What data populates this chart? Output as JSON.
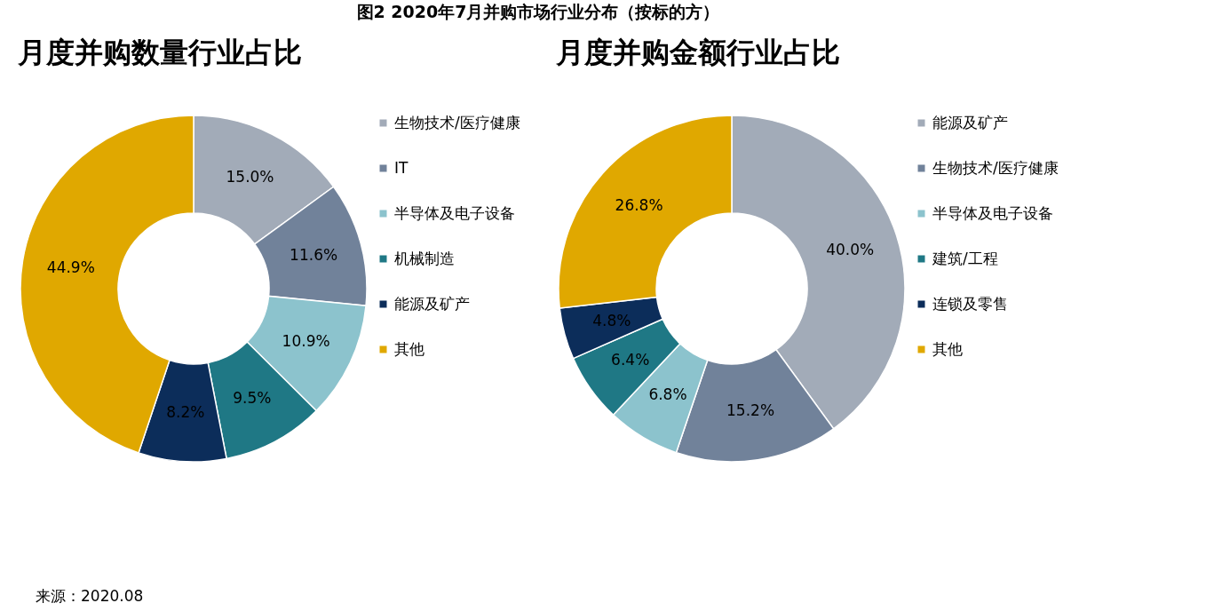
{
  "chart_data": [
    {
      "type": "donut",
      "title": "图2 2020年7月并购市场行业分布（按标的方）",
      "subtitle": "月度并购数量行业占比",
      "categories": [
        "生物技术/医疗健康",
        "IT",
        "半导体及电子设备",
        "机械制造",
        "能源及矿产",
        "其他"
      ],
      "values": [
        15.0,
        11.6,
        10.9,
        9.5,
        8.2,
        44.9
      ],
      "colors": [
        "#a2abb8",
        "#71829a",
        "#8cc3cd",
        "#1f7885",
        "#0c2d5a",
        "#e0a800"
      ],
      "value_labels": [
        "15.0%",
        "11.6%",
        "10.9%",
        "9.5%",
        "8.2%",
        "44.9%"
      ],
      "legend": "right",
      "annotations": [
        "来源：2020.08"
      ]
    },
    {
      "type": "donut",
      "title": "月度并购金额行业占比",
      "categories": [
        "能源及矿产",
        "生物技术/医疗健康",
        "半导体及电子设备",
        "建筑/工程",
        "连锁及零售",
        "其他"
      ],
      "values": [
        40.0,
        15.2,
        6.8,
        6.4,
        4.8,
        26.8
      ],
      "colors": [
        "#a2abb8",
        "#71829a",
        "#8cc3cd",
        "#1f7885",
        "#0c2d5a",
        "#e0a800"
      ],
      "value_labels": [
        "40.0%",
        "15.2%",
        "6.8%",
        "6.4%",
        "4.8%",
        "26.8%"
      ],
      "legend": "right"
    }
  ]
}
